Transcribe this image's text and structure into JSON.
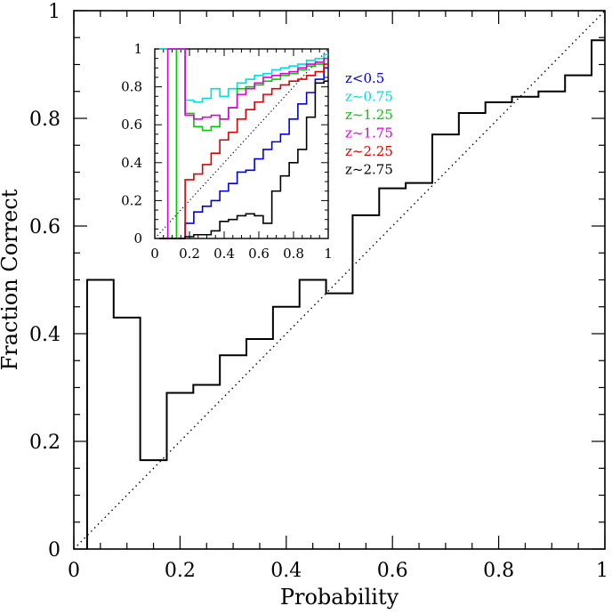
{
  "chart_data": [
    {
      "type": "line",
      "step": true,
      "xlabel": "Probability",
      "ylabel": "Fraction Correct",
      "xlim": [
        0,
        1
      ],
      "ylim": [
        0,
        1
      ],
      "x_ticklabels": [
        "0",
        "0.2",
        "0.4",
        "0.6",
        "0.8",
        "1"
      ],
      "y_ticklabels": [
        "0",
        "0.2",
        "0.4",
        "0.6",
        "0.8",
        "1"
      ],
      "grid": false,
      "reference_line": {
        "style": "dotted",
        "from": [
          0,
          0
        ],
        "to": [
          1,
          1
        ]
      },
      "series": [
        {
          "color": "#000000",
          "bin_edges": [
            0.025,
            0.075,
            0.125,
            0.175,
            0.225,
            0.275,
            0.325,
            0.375,
            0.425,
            0.475,
            0.525,
            0.575,
            0.625,
            0.675,
            0.725,
            0.775,
            0.825,
            0.875,
            0.925,
            0.975,
            1.0
          ],
          "values": [
            0.5,
            0.43,
            0.165,
            0.29,
            0.305,
            0.36,
            0.39,
            0.45,
            0.5,
            0.475,
            0.62,
            0.67,
            0.68,
            0.77,
            0.81,
            0.83,
            0.84,
            0.85,
            0.88,
            0.945
          ]
        }
      ]
    },
    {
      "type": "line",
      "step": true,
      "inset": true,
      "xlim": [
        0,
        1
      ],
      "ylim": [
        0,
        1
      ],
      "x_ticklabels": [
        "0",
        "0.2",
        "0.4",
        "0.6",
        "0.8",
        "1"
      ],
      "y_ticklabels": [
        "0",
        "0.2",
        "0.4",
        "0.6",
        "0.8",
        "1"
      ],
      "grid": false,
      "reference_line": {
        "style": "dotted",
        "from": [
          0,
          0
        ],
        "to": [
          1,
          1
        ]
      },
      "legend_placement": "right of inset",
      "bin_edges": [
        0.025,
        0.075,
        0.125,
        0.175,
        0.225,
        0.275,
        0.325,
        0.375,
        0.425,
        0.475,
        0.525,
        0.575,
        0.625,
        0.675,
        0.725,
        0.775,
        0.825,
        0.875,
        0.925,
        0.975,
        1.0
      ],
      "series": [
        {
          "name": "z<0.5",
          "color": "#0000dd",
          "values": [
            0,
            0,
            0,
            0.08,
            0.14,
            0.17,
            0.2,
            0.25,
            0.29,
            0.35,
            0.36,
            0.42,
            0.47,
            0.51,
            0.55,
            0.63,
            0.71,
            0.77,
            0.84,
            0.9
          ]
        },
        {
          "name": "z~0.75",
          "color": "#00dddd",
          "values": [
            1.0,
            1.0,
            1.0,
            0.73,
            0.72,
            0.74,
            0.79,
            0.75,
            0.79,
            0.82,
            0.84,
            0.86,
            0.87,
            0.89,
            0.9,
            0.91,
            0.92,
            0.94,
            0.95,
            0.97
          ]
        },
        {
          "name": "z~1.25",
          "color": "#00cc00",
          "values": [
            0,
            0,
            1.0,
            0.66,
            0.59,
            0.57,
            0.59,
            0.63,
            0.69,
            0.79,
            0.8,
            0.81,
            0.83,
            0.84,
            0.86,
            0.87,
            0.89,
            0.91,
            0.92,
            0.95
          ]
        },
        {
          "name": "z~1.75",
          "color": "#dd00dd",
          "values": [
            0,
            1.0,
            1.0,
            0.65,
            0.63,
            0.64,
            0.65,
            0.63,
            0.69,
            0.76,
            0.79,
            0.82,
            0.85,
            0.86,
            0.87,
            0.88,
            0.9,
            0.92,
            0.93,
            0.95
          ]
        },
        {
          "name": "z~2.25",
          "color": "#dd0000",
          "values": [
            0,
            0,
            0,
            0.31,
            0.34,
            0.39,
            0.45,
            0.52,
            0.56,
            0.63,
            0.68,
            0.72,
            0.76,
            0.79,
            0.81,
            0.83,
            0.84,
            0.86,
            0.88,
            0.92
          ]
        },
        {
          "name": "z~2.75",
          "color": "#000000",
          "values": [
            0,
            0,
            0,
            0.01,
            0.02,
            0.02,
            0.04,
            0.09,
            0.1,
            0.12,
            0.13,
            0.12,
            0.08,
            0.25,
            0.33,
            0.4,
            0.47,
            0.64,
            0.82,
            0.83
          ]
        }
      ]
    }
  ]
}
